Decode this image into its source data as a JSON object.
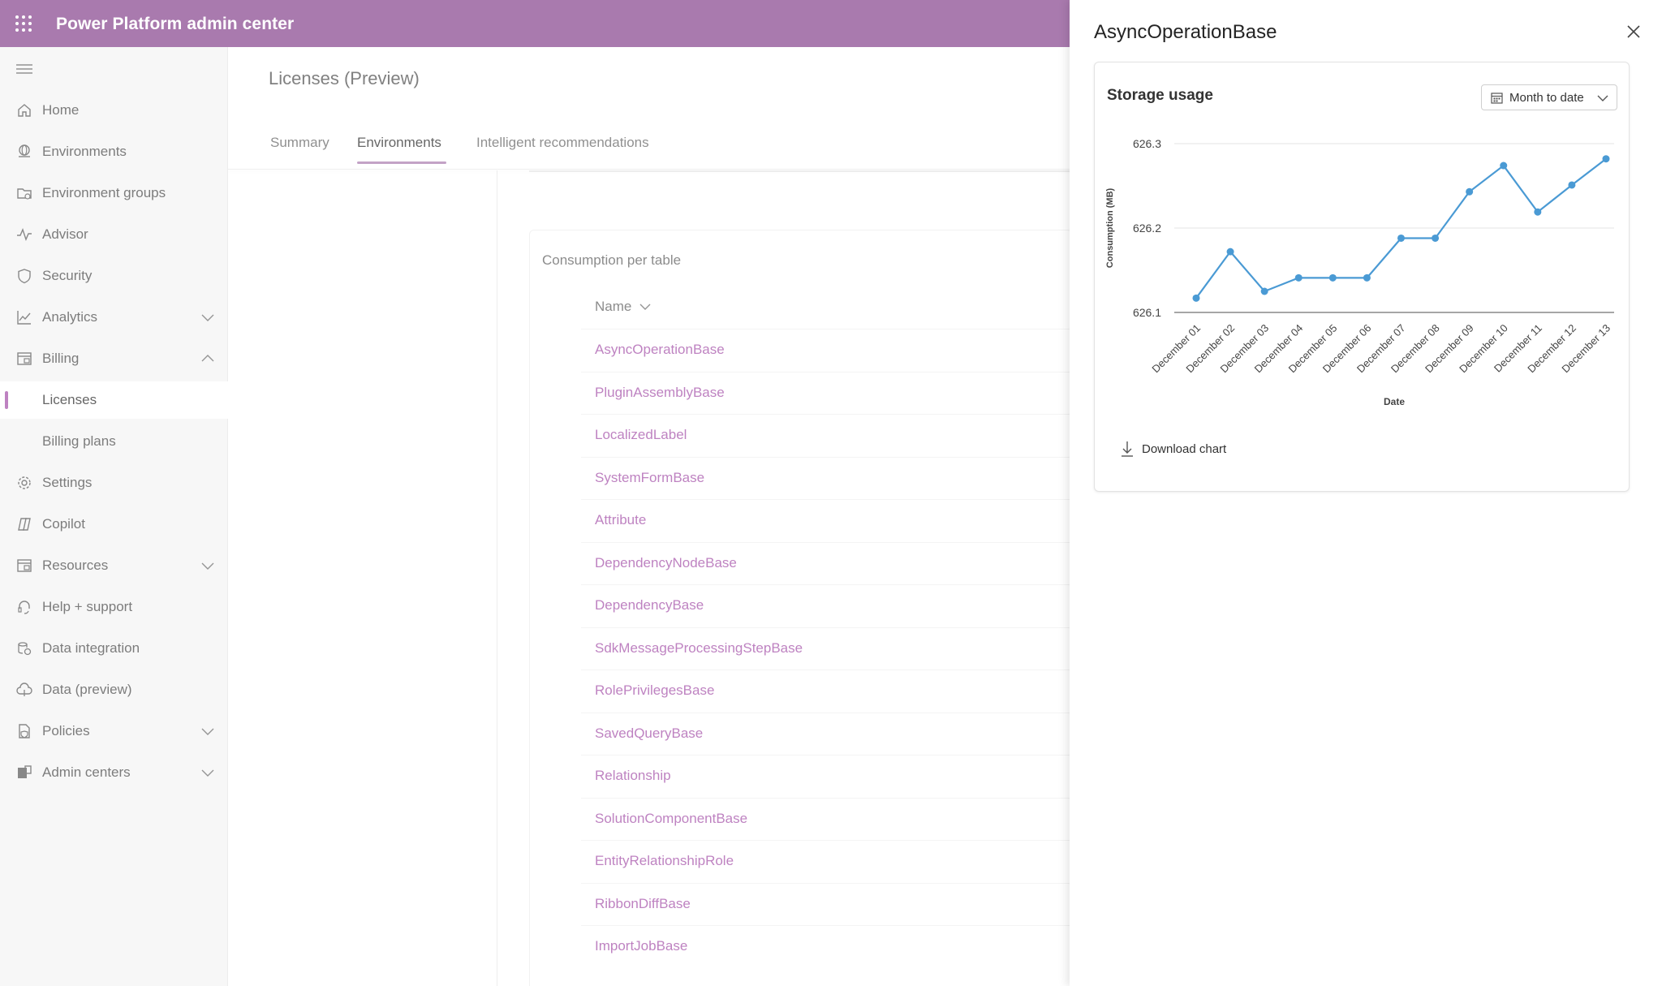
{
  "header": {
    "title": "Power Platform admin center"
  },
  "sidebar": {
    "items": [
      {
        "label": "Home",
        "icon": "home-icon"
      },
      {
        "label": "Environments",
        "icon": "environments-icon"
      },
      {
        "label": "Environment groups",
        "icon": "environment-groups-icon"
      },
      {
        "label": "Advisor",
        "icon": "advisor-icon"
      },
      {
        "label": "Security",
        "icon": "shield-icon"
      },
      {
        "label": "Analytics",
        "icon": "analytics-icon"
      },
      {
        "label": "Billing",
        "icon": "billing-icon"
      },
      {
        "label": "Licenses"
      },
      {
        "label": "Billing plans"
      },
      {
        "label": "Settings",
        "icon": "gear-icon"
      },
      {
        "label": "Copilot",
        "icon": "copilot-icon"
      },
      {
        "label": "Resources",
        "icon": "resources-icon"
      },
      {
        "label": "Help + support",
        "icon": "headset-icon"
      },
      {
        "label": "Data integration",
        "icon": "data-integration-icon"
      },
      {
        "label": "Data (preview)",
        "icon": "cloud-data-icon"
      },
      {
        "label": "Policies",
        "icon": "policies-icon"
      },
      {
        "label": "Admin centers",
        "icon": "admin-centers-icon"
      }
    ]
  },
  "main": {
    "page_title": "Licenses (Preview)",
    "tabs": [
      {
        "label": "Summary"
      },
      {
        "label": "Environments"
      },
      {
        "label": "Intelligent recommendations"
      }
    ],
    "table": {
      "title": "Consumption per table",
      "column_header": "Name",
      "rows": [
        "AsyncOperationBase",
        "PluginAssemblyBase",
        "LocalizedLabel",
        "SystemFormBase",
        "Attribute",
        "DependencyNodeBase",
        "DependencyBase",
        "SdkMessageProcessingStepBase",
        "RolePrivilegesBase",
        "SavedQueryBase",
        "Relationship",
        "SolutionComponentBase",
        "EntityRelationshipRole",
        "RibbonDiffBase",
        "ImportJobBase"
      ]
    }
  },
  "panel": {
    "title": "AsyncOperationBase",
    "chart_title": "Storage usage",
    "date_range": "Month to date",
    "download_label": "Download chart"
  },
  "colors": {
    "header": "#a97aae",
    "link": "#a24da6",
    "line": "#4a9ad4"
  },
  "chart_data": {
    "type": "line",
    "ylabel": "Consumption (MB)",
    "xlabel": "Date",
    "ylim": [
      626.1,
      626.3
    ],
    "yticks": [
      "626.1",
      "626.2",
      "626.3"
    ],
    "categories": [
      "December 01",
      "December 02",
      "December 03",
      "December 04",
      "December 05",
      "December 06",
      "December 07",
      "December 08",
      "December 09",
      "December 10",
      "December 11",
      "December 12",
      "December 13"
    ],
    "series": [
      {
        "values": [
          626.117,
          626.172,
          626.125,
          626.141,
          626.141,
          626.141,
          626.188,
          626.188,
          626.243,
          626.274,
          626.219,
          626.251,
          626.282
        ]
      }
    ]
  }
}
